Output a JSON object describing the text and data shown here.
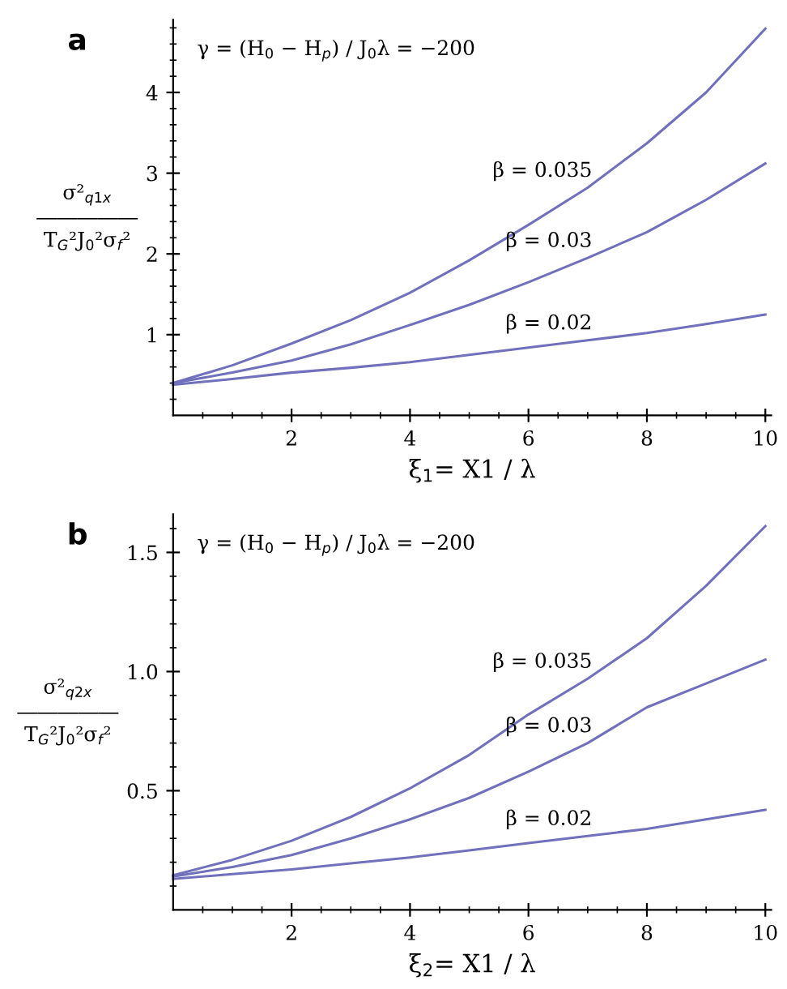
{
  "chart_data": [
    {
      "type": "line",
      "title": "a",
      "xlabel": "ξ$_{1}$= X1 / λ",
      "ylabel": "σ²$_{q1x}$\n―――――\nT$_{G}$²J$_{0}$²σ$_{f}$²",
      "annotations": [
        "γ = (H$_{0}$ − H$_{p}$) / J$_{0}$λ = −200"
      ],
      "x": [
        0,
        1,
        2,
        3,
        4,
        5,
        6,
        7,
        8,
        9,
        10
      ],
      "series": [
        {
          "name": "β = 0.035",
          "color": "#7070bc",
          "values": [
            0.4,
            0.62,
            0.89,
            1.18,
            1.52,
            1.92,
            2.36,
            2.82,
            3.37,
            4.0,
            4.79
          ]
        },
        {
          "name": "β = 0.03",
          "color": "#7070bc",
          "values": [
            0.4,
            0.53,
            0.68,
            0.88,
            1.12,
            1.37,
            1.65,
            1.95,
            2.27,
            2.67,
            3.12
          ]
        },
        {
          "name": "β = 0.02",
          "color": "#7070bc",
          "values": [
            0.38,
            0.45,
            0.53,
            0.59,
            0.66,
            0.75,
            0.84,
            0.93,
            1.02,
            1.13,
            1.25
          ]
        }
      ],
      "xlim": [
        0,
        10.1
      ],
      "ylim": [
        0,
        4.9
      ],
      "xticks": [
        {
          "value": 0.5,
          "label": null
        },
        {
          "value": 1,
          "label": null
        },
        {
          "value": 1.5,
          "label": null
        },
        2,
        {
          "value": 2.5,
          "label": null
        },
        {
          "value": 3,
          "label": null
        },
        {
          "value": 3.5,
          "label": null
        },
        4,
        {
          "value": 4.5,
          "label": null
        },
        {
          "value": 5,
          "label": null
        },
        {
          "value": 5.5,
          "label": null
        },
        6,
        {
          "value": 6.5,
          "label": null
        },
        {
          "value": 7,
          "label": null
        },
        {
          "value": 7.5,
          "label": null
        },
        8,
        {
          "value": 8.5,
          "label": null
        },
        {
          "value": 9,
          "label": null
        },
        {
          "value": 9.5,
          "label": null
        },
        10
      ],
      "yticks": [
        {
          "value": 0.2,
          "label": null
        },
        {
          "value": 0.4,
          "label": null
        },
        {
          "value": 0.6,
          "label": null
        },
        {
          "value": 0.8,
          "label": null
        },
        1,
        {
          "value": 1.2,
          "label": null
        },
        {
          "value": 1.4,
          "label": null
        },
        {
          "value": 1.6,
          "label": null
        },
        {
          "value": 1.8,
          "label": null
        },
        2,
        {
          "value": 2.2,
          "label": null
        },
        {
          "value": 2.4,
          "label": null
        },
        {
          "value": 2.6,
          "label": null
        },
        {
          "value": 2.8,
          "label": null
        },
        3,
        {
          "value": 3.2,
          "label": null
        },
        {
          "value": 3.4,
          "label": null
        },
        {
          "value": 3.6,
          "label": null
        },
        {
          "value": 3.8,
          "label": null
        },
        4,
        {
          "value": 4.2,
          "label": null
        },
        {
          "value": 4.4,
          "label": null
        },
        {
          "value": 4.6,
          "label": null
        },
        {
          "value": 4.8,
          "label": null
        }
      ],
      "grid": false,
      "legend": false,
      "marker": "none",
      "line_style": "solid"
    },
    {
      "type": "line",
      "title": "b",
      "xlabel": "ξ$_{2}$= X1 / λ",
      "ylabel": "σ²$_{q2x}$\n―――――\nT$_{G}$²J$_{0}$²σ$_{f}$²",
      "annotations": [
        "γ = (H$_{0}$ − H$_{p}$) / J$_{0}$λ = −200"
      ],
      "x": [
        0,
        1,
        2,
        3,
        4,
        5,
        6,
        7,
        8,
        9,
        10
      ],
      "series": [
        {
          "name": "β = 0.035",
          "color": "#7070bc",
          "values": [
            0.145,
            0.21,
            0.29,
            0.39,
            0.51,
            0.65,
            0.82,
            0.97,
            1.14,
            1.36,
            1.61
          ]
        },
        {
          "name": "β = 0.03",
          "color": "#7070bc",
          "values": [
            0.14,
            0.18,
            0.23,
            0.3,
            0.38,
            0.47,
            0.58,
            0.7,
            0.85,
            0.95,
            1.05
          ]
        },
        {
          "name": "β = 0.02",
          "color": "#7070bc",
          "values": [
            0.13,
            0.15,
            0.17,
            0.195,
            0.22,
            0.25,
            0.28,
            0.31,
            0.34,
            0.38,
            0.42
          ]
        }
      ],
      "xlim": [
        0,
        10.1
      ],
      "ylim": [
        0,
        1.66
      ],
      "xticks": [
        {
          "value": 0.5,
          "label": null
        },
        {
          "value": 1,
          "label": null
        },
        {
          "value": 1.5,
          "label": null
        },
        2,
        {
          "value": 2.5,
          "label": null
        },
        {
          "value": 3,
          "label": null
        },
        {
          "value": 3.5,
          "label": null
        },
        4,
        {
          "value": 4.5,
          "label": null
        },
        {
          "value": 5,
          "label": null
        },
        {
          "value": 5.5,
          "label": null
        },
        6,
        {
          "value": 6.5,
          "label": null
        },
        {
          "value": 7,
          "label": null
        },
        {
          "value": 7.5,
          "label": null
        },
        8,
        {
          "value": 8.5,
          "label": null
        },
        {
          "value": 9,
          "label": null
        },
        {
          "value": 9.5,
          "label": null
        },
        10
      ],
      "yticks": [
        {
          "value": 0.1,
          "label": null
        },
        {
          "value": 0.2,
          "label": null
        },
        {
          "value": 0.3,
          "label": null
        },
        {
          "value": 0.4,
          "label": null
        },
        0.5,
        {
          "value": 0.6,
          "label": null
        },
        {
          "value": 0.7,
          "label": null
        },
        {
          "value": 0.8,
          "label": null
        },
        {
          "value": 0.9,
          "label": null
        },
        {
          "value": 1.0,
          "label": "1.0"
        },
        {
          "value": 1.1,
          "label": null
        },
        {
          "value": 1.2,
          "label": null
        },
        {
          "value": 1.3,
          "label": null
        },
        {
          "value": 1.4,
          "label": null
        },
        1.5,
        {
          "value": 1.6,
          "label": null
        }
      ],
      "grid": false,
      "legend": false,
      "marker": "none",
      "line_style": "solid"
    }
  ]
}
